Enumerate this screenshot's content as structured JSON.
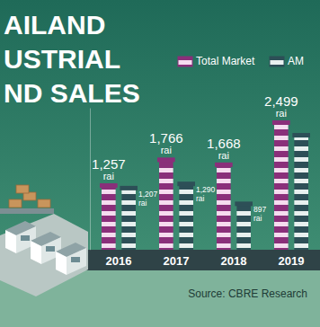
{
  "chart_data": {
    "type": "bar",
    "title": "AILAND\nUSTRIAL\nND SALES",
    "categories": [
      "2016",
      "2017",
      "2018",
      "2019"
    ],
    "series": [
      {
        "name": "Total Market",
        "color": "#8a2f7a",
        "values": [
          1257,
          1766,
          1668,
          2499
        ],
        "value_labels": [
          "1,257 rai",
          "1,766 rai",
          "1,668 rai",
          "2,499 rai"
        ]
      },
      {
        "name": "AM",
        "color": "#2d4f57",
        "values": [
          1207,
          1290,
          897,
          2250
        ],
        "value_labels": [
          "1,207 rai",
          "1,290 rai",
          "897 rai",
          null
        ]
      }
    ],
    "ylim": [
      0,
      2800
    ],
    "yticks": [],
    "data_labels": true,
    "tick_labels": "x",
    "legend": "top-right",
    "source": "Source: CBRE Research"
  }
}
